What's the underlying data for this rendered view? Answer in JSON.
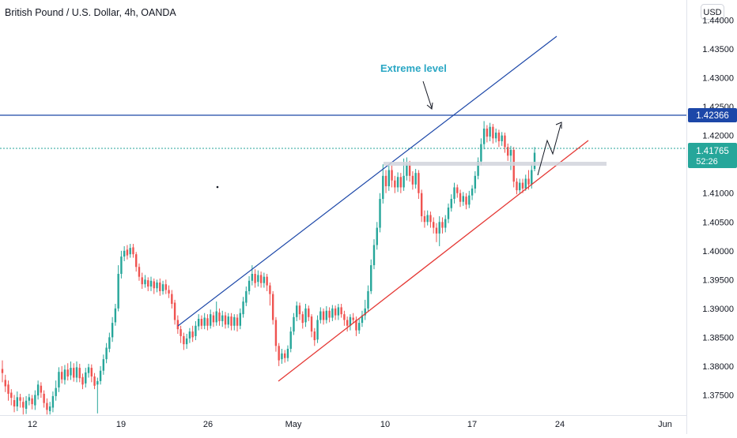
{
  "header": {
    "title": "British Pound / U.S. Dollar, 4h, OANDA",
    "currency_button": "USD"
  },
  "chart_data": {
    "type": "candlestick",
    "y_ticks": [
      "1.44000",
      "1.43500",
      "1.43000",
      "1.42500",
      "1.42000",
      "1.41500",
      "1.41000",
      "1.40500",
      "1.40000",
      "1.39500",
      "1.39000",
      "1.38500",
      "1.38000",
      "1.37500"
    ],
    "ylim": [
      1.3715,
      1.4435
    ],
    "x_ticks": [
      "12",
      "19",
      "26",
      "May",
      "10",
      "17",
      "24",
      "Jun"
    ],
    "price_labels": {
      "level": "1.42366",
      "last": "1.41765",
      "countdown": "52:26"
    },
    "annotation": "Extreme level",
    "candles": [
      [
        0,
        1.3795,
        1.3788,
        1.381,
        1.3772
      ],
      [
        1,
        1.3776,
        1.3765,
        1.3785,
        1.3755
      ],
      [
        2,
        1.3768,
        1.3752,
        1.3775,
        1.374
      ],
      [
        3,
        1.3754,
        1.3745,
        1.376,
        1.3732
      ],
      [
        4,
        1.3741,
        1.373,
        1.375,
        1.372
      ],
      [
        5,
        1.373,
        1.3746,
        1.3756,
        1.3722
      ],
      [
        6,
        1.3746,
        1.374,
        1.3752,
        1.3728
      ],
      [
        7,
        1.3738,
        1.3728,
        1.3746,
        1.3716
      ],
      [
        8,
        1.3726,
        1.374,
        1.3748,
        1.3717
      ],
      [
        9,
        1.374,
        1.3746,
        1.3752,
        1.3732
      ],
      [
        10,
        1.3744,
        1.3734,
        1.375,
        1.3725
      ],
      [
        11,
        1.3732,
        1.375,
        1.3758,
        1.3724
      ],
      [
        12,
        1.3749,
        1.3768,
        1.3775,
        1.3742
      ],
      [
        13,
        1.3766,
        1.3754,
        1.3772,
        1.3745
      ],
      [
        14,
        1.3752,
        1.3736,
        1.3758,
        1.3728
      ],
      [
        15,
        1.3736,
        1.3724,
        1.3744,
        1.3716
      ],
      [
        16,
        1.3722,
        1.373,
        1.3738,
        1.3716
      ],
      [
        17,
        1.3728,
        1.3748,
        1.3756,
        1.372
      ],
      [
        18,
        1.3748,
        1.3762,
        1.3775,
        1.374
      ],
      [
        19,
        1.3763,
        1.379,
        1.3798,
        1.3755
      ],
      [
        20,
        1.379,
        1.3777,
        1.38,
        1.377
      ],
      [
        21,
        1.3776,
        1.3794,
        1.3802,
        1.3768
      ],
      [
        22,
        1.3794,
        1.3782,
        1.3805,
        1.3775
      ],
      [
        23,
        1.3784,
        1.3797,
        1.3808,
        1.3776
      ],
      [
        24,
        1.3797,
        1.378,
        1.3805,
        1.3773
      ],
      [
        25,
        1.378,
        1.3798,
        1.3808,
        1.3772
      ],
      [
        26,
        1.3797,
        1.3779,
        1.3804,
        1.3772
      ],
      [
        27,
        1.3781,
        1.3768,
        1.3787,
        1.376
      ],
      [
        28,
        1.377,
        1.3789,
        1.3797,
        1.3763
      ],
      [
        29,
        1.3788,
        1.3798,
        1.3804,
        1.378
      ],
      [
        30,
        1.3797,
        1.3782,
        1.3803,
        1.3772
      ],
      [
        31,
        1.3782,
        1.3766,
        1.3788,
        1.376
      ],
      [
        32,
        1.3768,
        1.3774,
        1.378,
        1.3718
      ],
      [
        33,
        1.3774,
        1.3792,
        1.38,
        1.3768
      ],
      [
        34,
        1.3792,
        1.3812,
        1.382,
        1.3785
      ],
      [
        35,
        1.3812,
        1.3832,
        1.384,
        1.3805
      ],
      [
        36,
        1.383,
        1.385,
        1.3858,
        1.3824
      ],
      [
        37,
        1.385,
        1.3875,
        1.3885,
        1.3842
      ],
      [
        38,
        1.3876,
        1.39,
        1.3908,
        1.387
      ],
      [
        39,
        1.39,
        1.396,
        1.3975,
        1.3895
      ],
      [
        40,
        1.396,
        1.399,
        1.4,
        1.3952
      ],
      [
        41,
        1.399,
        1.4,
        1.4008,
        1.3982
      ],
      [
        42,
        1.4002,
        1.3992,
        1.401,
        1.3985
      ],
      [
        43,
        1.3994,
        1.4005,
        1.4012,
        1.3988
      ],
      [
        44,
        1.4006,
        1.3994,
        1.4012,
        1.3988
      ],
      [
        45,
        1.3994,
        1.3972,
        1.3998,
        1.3964
      ],
      [
        46,
        1.3972,
        1.3955,
        1.3978,
        1.3948
      ],
      [
        47,
        1.3954,
        1.3942,
        1.3962,
        1.3934
      ],
      [
        48,
        1.3942,
        1.395,
        1.3958,
        1.3936
      ],
      [
        49,
        1.3949,
        1.3938,
        1.3954,
        1.393
      ],
      [
        50,
        1.3938,
        1.3948,
        1.3955,
        1.393
      ],
      [
        51,
        1.3947,
        1.3935,
        1.3952,
        1.3925
      ],
      [
        52,
        1.3935,
        1.3945,
        1.395,
        1.3928
      ],
      [
        53,
        1.3945,
        1.393,
        1.3952,
        1.3922
      ],
      [
        54,
        1.393,
        1.3942,
        1.3948,
        1.3924
      ],
      [
        55,
        1.3942,
        1.3932,
        1.395,
        1.3925
      ],
      [
        56,
        1.3932,
        1.3926,
        1.394,
        1.3918
      ],
      [
        57,
        1.3925,
        1.3908,
        1.3932,
        1.39
      ],
      [
        58,
        1.391,
        1.388,
        1.3915,
        1.3872
      ],
      [
        59,
        1.388,
        1.3864,
        1.3888,
        1.3856
      ],
      [
        60,
        1.3864,
        1.3852,
        1.387,
        1.384
      ],
      [
        61,
        1.3852,
        1.3838,
        1.3858,
        1.3828
      ],
      [
        62,
        1.3838,
        1.3848,
        1.3856,
        1.383
      ],
      [
        63,
        1.3848,
        1.386,
        1.3866,
        1.384
      ],
      [
        64,
        1.386,
        1.385,
        1.387,
        1.3842
      ],
      [
        65,
        1.3852,
        1.387,
        1.3878,
        1.3845
      ],
      [
        66,
        1.3869,
        1.3882,
        1.389,
        1.3862
      ],
      [
        67,
        1.3882,
        1.387,
        1.3888,
        1.3864
      ],
      [
        68,
        1.387,
        1.3884,
        1.3892,
        1.3864
      ],
      [
        69,
        1.3883,
        1.387,
        1.389,
        1.3862
      ],
      [
        70,
        1.387,
        1.389,
        1.3898,
        1.3865
      ],
      [
        71,
        1.3888,
        1.3876,
        1.3894,
        1.3868
      ],
      [
        72,
        1.3876,
        1.3895,
        1.3912,
        1.387
      ],
      [
        73,
        1.3893,
        1.3878,
        1.39,
        1.387
      ],
      [
        74,
        1.3878,
        1.3888,
        1.3896,
        1.3868
      ],
      [
        75,
        1.3888,
        1.3872,
        1.3894,
        1.3865
      ],
      [
        76,
        1.3872,
        1.3886,
        1.3892,
        1.3866
      ],
      [
        77,
        1.3886,
        1.387,
        1.3892,
        1.3862
      ],
      [
        78,
        1.387,
        1.3885,
        1.389,
        1.3862
      ],
      [
        79,
        1.3884,
        1.387,
        1.389,
        1.386
      ],
      [
        80,
        1.387,
        1.3892,
        1.39,
        1.3864
      ],
      [
        81,
        1.389,
        1.3912,
        1.392,
        1.3884
      ],
      [
        82,
        1.391,
        1.393,
        1.3938,
        1.3904
      ],
      [
        83,
        1.393,
        1.3948,
        1.3956,
        1.3924
      ],
      [
        84,
        1.3948,
        1.396,
        1.3975,
        1.394
      ],
      [
        85,
        1.396,
        1.3944,
        1.3968,
        1.3936
      ],
      [
        86,
        1.3946,
        1.3958,
        1.3966,
        1.3938
      ],
      [
        87,
        1.3958,
        1.3944,
        1.3964,
        1.3936
      ],
      [
        88,
        1.3944,
        1.3955,
        1.3962,
        1.3936
      ],
      [
        89,
        1.3955,
        1.394,
        1.396,
        1.393
      ],
      [
        90,
        1.394,
        1.3925,
        1.3945,
        1.3905
      ],
      [
        91,
        1.3925,
        1.388,
        1.393,
        1.3872
      ],
      [
        92,
        1.388,
        1.3835,
        1.3885,
        1.3825
      ],
      [
        93,
        1.3835,
        1.381,
        1.384,
        1.38
      ],
      [
        94,
        1.3812,
        1.3822,
        1.383,
        1.3804
      ],
      [
        95,
        1.3822,
        1.3814,
        1.3828,
        1.3806
      ],
      [
        96,
        1.3814,
        1.383,
        1.3836,
        1.3808
      ],
      [
        97,
        1.383,
        1.386,
        1.3868,
        1.3824
      ],
      [
        98,
        1.386,
        1.3885,
        1.3892,
        1.3854
      ],
      [
        99,
        1.3885,
        1.3905,
        1.3912,
        1.3878
      ],
      [
        100,
        1.3905,
        1.389,
        1.391,
        1.388
      ],
      [
        101,
        1.389,
        1.3875,
        1.3895,
        1.3865
      ],
      [
        102,
        1.3876,
        1.39,
        1.3908,
        1.3868
      ],
      [
        103,
        1.39,
        1.3885,
        1.3905,
        1.3878
      ],
      [
        104,
        1.3886,
        1.386,
        1.389,
        1.385
      ],
      [
        105,
        1.386,
        1.3845,
        1.3866,
        1.3835
      ],
      [
        106,
        1.3846,
        1.388,
        1.3888,
        1.384
      ],
      [
        107,
        1.388,
        1.3895,
        1.3902,
        1.3874
      ],
      [
        108,
        1.3895,
        1.388,
        1.39,
        1.3872
      ],
      [
        109,
        1.388,
        1.3896,
        1.3904,
        1.3874
      ],
      [
        110,
        1.3896,
        1.3884,
        1.3902,
        1.3876
      ],
      [
        111,
        1.3884,
        1.39,
        1.3906,
        1.3878
      ],
      [
        112,
        1.39,
        1.3888,
        1.3905,
        1.388
      ],
      [
        113,
        1.3888,
        1.3902,
        1.3908,
        1.388
      ],
      [
        114,
        1.3902,
        1.389,
        1.3908,
        1.3884
      ],
      [
        115,
        1.389,
        1.388,
        1.3896,
        1.387
      ],
      [
        116,
        1.388,
        1.387,
        1.3886,
        1.386
      ],
      [
        117,
        1.387,
        1.3885,
        1.389,
        1.3862
      ],
      [
        118,
        1.3884,
        1.388,
        1.3892,
        1.3874
      ],
      [
        119,
        1.388,
        1.3862,
        1.3886,
        1.3852
      ],
      [
        120,
        1.3862,
        1.3875,
        1.3882,
        1.3856
      ],
      [
        121,
        1.3875,
        1.3888,
        1.3896,
        1.3868
      ],
      [
        122,
        1.3888,
        1.39,
        1.3915,
        1.388
      ],
      [
        123,
        1.39,
        1.393,
        1.394,
        1.3894
      ],
      [
        124,
        1.393,
        1.3975,
        1.3985,
        1.3925
      ],
      [
        125,
        1.3975,
        1.401,
        1.402,
        1.3968
      ],
      [
        126,
        1.401,
        1.404,
        1.405,
        1.4002
      ],
      [
        127,
        1.404,
        1.409,
        1.41,
        1.4032
      ],
      [
        128,
        1.409,
        1.413,
        1.415,
        1.4082
      ],
      [
        129,
        1.413,
        1.4112,
        1.414,
        1.41
      ],
      [
        130,
        1.4112,
        1.414,
        1.4148,
        1.4104
      ],
      [
        131,
        1.414,
        1.4122,
        1.4148,
        1.411
      ],
      [
        132,
        1.4122,
        1.411,
        1.413,
        1.41
      ],
      [
        133,
        1.411,
        1.4128,
        1.4136,
        1.4102
      ],
      [
        134,
        1.4128,
        1.411,
        1.4135,
        1.41
      ],
      [
        135,
        1.411,
        1.413,
        1.416,
        1.4104
      ],
      [
        136,
        1.413,
        1.415,
        1.4162,
        1.4122
      ],
      [
        137,
        1.415,
        1.413,
        1.4156,
        1.412
      ],
      [
        138,
        1.413,
        1.4115,
        1.4138,
        1.4106
      ],
      [
        139,
        1.4115,
        1.4135,
        1.4142,
        1.4108
      ],
      [
        140,
        1.4135,
        1.41,
        1.414,
        1.409
      ],
      [
        141,
        1.41,
        1.406,
        1.4106,
        1.405
      ],
      [
        142,
        1.406,
        1.405,
        1.407,
        1.404
      ],
      [
        143,
        1.405,
        1.4062,
        1.407,
        1.4044
      ],
      [
        144,
        1.4062,
        1.405,
        1.4068,
        1.404
      ],
      [
        145,
        1.405,
        1.404,
        1.4058,
        1.403
      ],
      [
        146,
        1.404,
        1.403,
        1.4048,
        1.4015
      ],
      [
        147,
        1.403,
        1.405,
        1.406,
        1.4008
      ],
      [
        148,
        1.405,
        1.404,
        1.4058,
        1.403
      ],
      [
        149,
        1.404,
        1.4055,
        1.4062,
        1.4032
      ],
      [
        150,
        1.4055,
        1.4075,
        1.4082,
        1.4048
      ],
      [
        151,
        1.4074,
        1.409,
        1.4098,
        1.4068
      ],
      [
        152,
        1.409,
        1.411,
        1.4118,
        1.4082
      ],
      [
        153,
        1.411,
        1.41,
        1.4115,
        1.4092
      ],
      [
        154,
        1.41,
        1.4085,
        1.4106,
        1.4076
      ],
      [
        155,
        1.4085,
        1.4095,
        1.4102,
        1.4078
      ],
      [
        156,
        1.4094,
        1.408,
        1.41,
        1.4072
      ],
      [
        157,
        1.408,
        1.4096,
        1.4104,
        1.4074
      ],
      [
        158,
        1.4096,
        1.4108,
        1.4114,
        1.4088
      ],
      [
        159,
        1.4108,
        1.413,
        1.4138,
        1.41
      ],
      [
        160,
        1.413,
        1.4155,
        1.4162,
        1.4124
      ],
      [
        161,
        1.4155,
        1.4185,
        1.4195,
        1.4148
      ],
      [
        162,
        1.4185,
        1.4212,
        1.4225,
        1.4176
      ],
      [
        163,
        1.4212,
        1.4198,
        1.4218,
        1.4188
      ],
      [
        164,
        1.4198,
        1.4215,
        1.4222,
        1.419
      ],
      [
        165,
        1.4215,
        1.4195,
        1.422,
        1.4186
      ],
      [
        166,
        1.4195,
        1.4205,
        1.4212,
        1.4188
      ],
      [
        167,
        1.4205,
        1.419,
        1.421,
        1.418
      ],
      [
        168,
        1.419,
        1.42,
        1.4206,
        1.4182
      ],
      [
        169,
        1.42,
        1.418,
        1.4205,
        1.417
      ],
      [
        170,
        1.418,
        1.4165,
        1.4186,
        1.4156
      ],
      [
        171,
        1.4165,
        1.4175,
        1.4182,
        1.414
      ],
      [
        172,
        1.4175,
        1.412,
        1.418,
        1.411
      ],
      [
        173,
        1.412,
        1.4105,
        1.4126,
        1.4098
      ],
      [
        174,
        1.4105,
        1.4118,
        1.4125,
        1.41
      ],
      [
        175,
        1.4118,
        1.4108,
        1.4125,
        1.41
      ],
      [
        176,
        1.4108,
        1.4125,
        1.4132,
        1.4104
      ],
      [
        177,
        1.4125,
        1.4115,
        1.414,
        1.4106
      ],
      [
        178,
        1.4115,
        1.414,
        1.415,
        1.4108
      ],
      [
        179,
        1.4142,
        1.417,
        1.418,
        1.4138
      ]
    ]
  }
}
